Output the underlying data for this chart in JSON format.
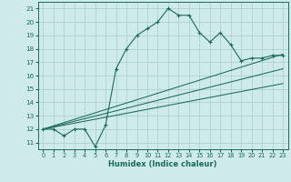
{
  "title": "",
  "xlabel": "Humidex (Indice chaleur)",
  "bg_color": "#ceeaea",
  "grid_color": "#aacccc",
  "line_color": "#1a6b5a",
  "xlim": [
    -0.5,
    23.5
  ],
  "ylim": [
    10.5,
    21.5
  ],
  "xticks": [
    0,
    1,
    2,
    3,
    4,
    5,
    6,
    7,
    8,
    9,
    10,
    11,
    12,
    13,
    14,
    15,
    16,
    17,
    18,
    19,
    20,
    21,
    22,
    23
  ],
  "yticks": [
    11,
    12,
    13,
    14,
    15,
    16,
    17,
    18,
    19,
    20,
    21
  ],
  "main_series": {
    "x": [
      0,
      1,
      2,
      3,
      4,
      5,
      6,
      7,
      8,
      9,
      10,
      11,
      12,
      13,
      14,
      15,
      16,
      17,
      18,
      19,
      20,
      21,
      22,
      23
    ],
    "y": [
      12.0,
      12.0,
      11.5,
      12.0,
      12.0,
      10.7,
      12.3,
      16.5,
      18.0,
      19.0,
      19.5,
      20.0,
      21.0,
      20.5,
      20.5,
      19.2,
      18.5,
      19.2,
      18.3,
      17.1,
      17.3,
      17.3,
      17.5,
      17.5
    ]
  },
  "line1": {
    "x": [
      0,
      23
    ],
    "y": [
      12.0,
      17.6
    ]
  },
  "line2": {
    "x": [
      0,
      23
    ],
    "y": [
      12.0,
      16.5
    ]
  },
  "line3": {
    "x": [
      0,
      23
    ],
    "y": [
      12.0,
      15.4
    ]
  }
}
